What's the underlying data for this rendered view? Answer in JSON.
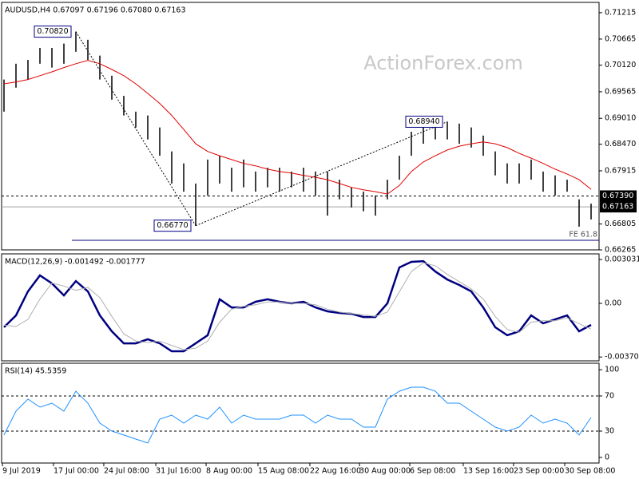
{
  "chart_data": [
    {
      "type": "hilo",
      "title": "AUDUSD,H4 0.67097 0.67196 0.67080 0.67163",
      "watermark": "ActionForex.com",
      "color": "#000000",
      "xlim": [
        0,
        49
      ],
      "ylim": [
        0.66265,
        0.7143
      ],
      "yticks": [
        0.71215,
        0.70665,
        {
          "value": 0.7012,
          "label": "0.70120"
        },
        0.69565,
        {
          "value": 0.6901,
          "label": "0.69010"
        },
        {
          "value": 0.6847,
          "label": "0.68470"
        },
        0.67915,
        0.66805,
        0.66265
      ],
      "high": [
        0.6982,
        0.7015,
        0.7023,
        0.7048,
        0.7048,
        0.7057,
        0.7082,
        0.7065,
        0.7032,
        0.699,
        0.6948,
        0.6915,
        0.6907,
        0.6882,
        0.6832,
        0.6807,
        0.6765,
        0.6815,
        0.6823,
        0.6798,
        0.6815,
        0.679,
        0.6798,
        0.6798,
        0.679,
        0.6798,
        0.679,
        0.679,
        0.6773,
        0.6757,
        0.6748,
        0.674,
        0.6773,
        0.6823,
        0.6873,
        0.689,
        0.689,
        0.6894,
        0.689,
        0.6882,
        0.6865,
        0.6832,
        0.6807,
        0.6807,
        0.6815,
        0.679,
        0.6782,
        0.6773,
        0.6732,
        0.6723
      ],
      "low": [
        0.6915,
        0.6965,
        0.6982,
        0.7015,
        0.7007,
        0.7015,
        0.704,
        0.7023,
        0.6982,
        0.694,
        0.6907,
        0.6882,
        0.6857,
        0.6823,
        0.6765,
        0.6748,
        0.6677,
        0.674,
        0.6765,
        0.6748,
        0.6757,
        0.6748,
        0.6757,
        0.6748,
        0.6757,
        0.6748,
        0.674,
        0.6698,
        0.6732,
        0.6715,
        0.6707,
        0.6698,
        0.6732,
        0.6773,
        0.6823,
        0.6848,
        0.6857,
        0.6857,
        0.6848,
        0.684,
        0.6823,
        0.6782,
        0.6765,
        0.6765,
        0.6773,
        0.6748,
        0.674,
        0.6748,
        0.6675,
        0.669
      ],
      "series": [
        {
          "color": "#e00000",
          "values": [
            0.6973,
            0.6977,
            0.6982,
            0.699,
            0.6998,
            0.7007,
            0.7015,
            0.7022,
            0.7015,
            0.7003,
            0.699,
            0.6973,
            0.6953,
            0.6932,
            0.6907,
            0.6878,
            0.6848,
            0.6832,
            0.6823,
            0.6815,
            0.6807,
            0.6802,
            0.6795,
            0.679,
            0.6787,
            0.6782,
            0.6778,
            0.6773,
            0.6765,
            0.6757,
            0.6752,
            0.6748,
            0.6743,
            0.6761,
            0.679,
            0.681,
            0.6823,
            0.6835,
            0.6843,
            0.6848,
            0.6852,
            0.6848,
            0.684,
            0.6828,
            0.6818,
            0.6807,
            0.6795,
            0.6785,
            0.6773,
            0.6753
          ]
        }
      ],
      "levels": [
        {
          "value": 0.6739,
          "label": "0.67390",
          "style": "dashed"
        },
        {
          "value": 0.67163,
          "style": "solid"
        }
      ],
      "annotations": [
        {
          "label": "0.70820",
          "x": 6,
          "value": 0.7082
        },
        {
          "label": "0.66770",
          "x": 16,
          "value": 0.6677
        },
        {
          "label": "0.68940",
          "x": 37,
          "value": 0.6894
        }
      ],
      "fe_level": {
        "label": "FE 61.8",
        "value": 0.66465
      }
    },
    {
      "type": "line",
      "title": "MACD(12,26,9) -0.001492 -0.001777",
      "xlim": [
        0,
        49
      ],
      "ylim": [
        -0.00397,
        0.00342
      ],
      "yticks": [
        0.003031,
        {
          "value": 0,
          "label": "0.00"
        },
        -0.003706
      ],
      "series": [
        {
          "color": "#000080",
          "values": [
            -0.00165,
            -0.00083,
            0.00083,
            0.00193,
            0.00138,
            0.00055,
            0.00154,
            0.00083,
            -0.00083,
            -0.00193,
            -0.00276,
            -0.00276,
            -0.00248,
            -0.00276,
            -0.00331,
            -0.00331,
            -0.00276,
            -0.0022,
            0.00028,
            -0.00028,
            -0.00028,
            0.00011,
            0.00028,
            0.00011,
            0,
            0.00011,
            -0.00028,
            -0.00055,
            -0.00066,
            -0.00072,
            -0.00094,
            -0.00094,
            0,
            0.00248,
            0.00287,
            0.00292,
            0.0022,
            0.00165,
            0.00127,
            0.00083,
            -0.00028,
            -0.00165,
            -0.0022,
            -0.00193,
            -0.00083,
            -0.00138,
            -0.0011,
            -0.00083,
            -0.00193,
            -0.00149
          ]
        },
        {
          "color": "#b0b0b0",
          "values": [
            -0.0015,
            -0.0016,
            -0.0011,
            0.0003,
            0.0014,
            0.0012,
            0.0009,
            0.0011,
            0.0004,
            -0.0009,
            -0.0021,
            -0.0026,
            -0.0027,
            -0.0026,
            -0.0029,
            -0.0032,
            -0.0031,
            -0.0026,
            -0.0013,
            -0.0004,
            -0.0002,
            -0.0001,
            0.0001,
            0.0001,
            0,
            0,
            -0.0001,
            -0.0004,
            -0.0006,
            -0.0007,
            -0.0008,
            -0.0009,
            -0.0006,
            0.0008,
            0.0022,
            0.0028,
            0.0026,
            0.002,
            0.0015,
            0.001,
            0.0003,
            -0.0009,
            -0.0018,
            -0.002,
            -0.0013,
            -0.0012,
            -0.0012,
            -0.001,
            -0.0014,
            -0.00178
          ]
        }
      ]
    },
    {
      "type": "line",
      "title": "RSI(14) 45.5359",
      "xlim": [
        0,
        49
      ],
      "ylim": [
        -6.4,
        107.3
      ],
      "yticks": [
        100,
        70,
        30,
        0
      ],
      "levels": [
        70,
        30
      ],
      "series": [
        {
          "color": "#1e90ff",
          "values": [
            25.5,
            52.7,
            66.4,
            57.3,
            61.8,
            52.7,
            75.5,
            61.8,
            39.1,
            30,
            25.5,
            20.9,
            16.4,
            43.6,
            48.2,
            39.1,
            48.2,
            43.6,
            57.3,
            39.1,
            48.2,
            43.6,
            43.6,
            43.6,
            48.2,
            48.2,
            39.1,
            48.2,
            43.6,
            43.6,
            34.5,
            34.5,
            66.4,
            75.5,
            80,
            80,
            75.5,
            61.8,
            61.8,
            52.7,
            43.6,
            34.5,
            30,
            34.5,
            48.2,
            39.1,
            43.6,
            39.1,
            25.5,
            45.5
          ]
        }
      ],
      "xticks": [
        {
          "value": -0.13,
          "label": "9 Jul 2019"
        },
        {
          "value": 4.13,
          "label": "17 Jul 00:00"
        },
        {
          "value": 8.33,
          "label": "24 Jul 08:00"
        },
        {
          "value": 12.67,
          "label": "31 Jul 16:00"
        },
        {
          "value": 16.87,
          "label": "8 Aug 00:00"
        },
        {
          "value": 21.2,
          "label": "15 Aug 08:00"
        },
        {
          "value": 25.53,
          "label": "22 Aug 16:00"
        },
        {
          "value": 29.67,
          "label": "30 Aug 00:00"
        },
        {
          "value": 33.87,
          "label": "6 Sep 08:00"
        },
        {
          "value": 38.33,
          "label": "13 Sep 16:00"
        },
        {
          "value": 42.53,
          "label": "23 Sep 00:00"
        },
        {
          "value": 46.8,
          "label": "30 Sep 08:00"
        }
      ]
    }
  ]
}
